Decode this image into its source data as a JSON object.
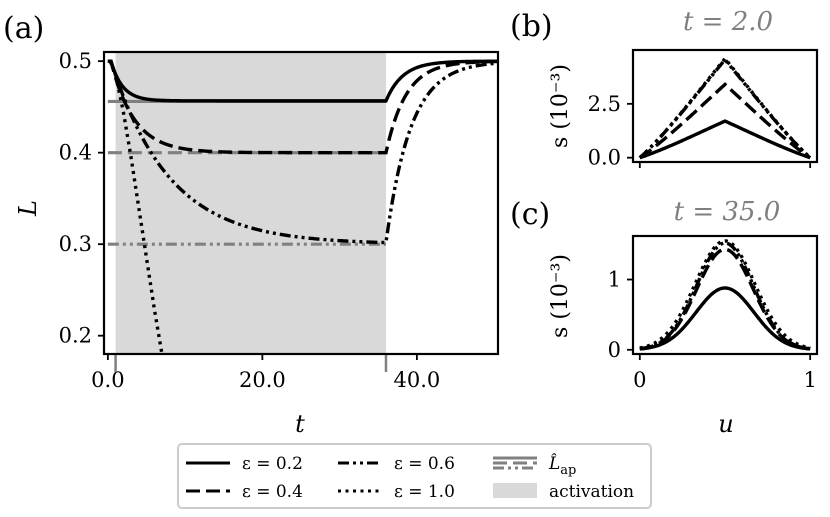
{
  "colors": {
    "curve": "#000000",
    "reference": "#808080",
    "activation": "#d9d9d9",
    "frame": "#000000",
    "title_grey": "#7f7f7f"
  },
  "chart_data": [
    {
      "panel": "(a)",
      "type": "line",
      "xlabel": "t",
      "ylabel": "L",
      "xlim": [
        -0.5,
        50.5
      ],
      "ylim": [
        0.18,
        0.51
      ],
      "x_ticks": [
        0,
        20,
        40
      ],
      "x_tick_labels": [
        "0.0",
        "20.0",
        "40.0"
      ],
      "y_ticks": [
        0.2,
        0.3,
        0.4,
        0.5
      ],
      "y_tick_labels": [
        "0.2",
        "0.3",
        "0.4",
        "0.5"
      ],
      "activation": {
        "start": 1,
        "end": 36
      },
      "series": [
        {
          "name": "ε = 0.2",
          "style": "solid",
          "L0": 0.5,
          "plateau": 0.4566,
          "tau": 1.5,
          "t_off": 36,
          "recovery_tau": 2.2,
          "final": 0.5
        },
        {
          "name": "ε = 0.4",
          "style": "dashed",
          "L0": 0.5,
          "plateau": 0.4,
          "tau": 3.0,
          "t_off": 36,
          "recovery_tau": 2.6,
          "final": 0.5
        },
        {
          "name": "ε = 0.6",
          "style": "dashdotdot",
          "L0": 0.5,
          "plateau": 0.3,
          "tau": 7.5,
          "t_off": 36,
          "recovery_tau": 3.2,
          "final": 0.5
        },
        {
          "name": "ε = 1.0",
          "style": "dotted",
          "points": [
            [
              0.3,
              0.5
            ],
            [
              1,
              0.485
            ],
            [
              2,
              0.445
            ],
            [
              3,
              0.395
            ],
            [
              4,
              0.34
            ],
            [
              5,
              0.285
            ],
            [
              6,
              0.23
            ],
            [
              7,
              0.18
            ]
          ]
        }
      ],
      "reference_lines": [
        {
          "name": "ε = 0.2",
          "style": "solid",
          "value": 0.456,
          "x_from": 0,
          "x_to": 36
        },
        {
          "name": "ε = 0.4",
          "style": "dashed",
          "value": 0.4,
          "x_from": 0,
          "x_to": 36
        },
        {
          "name": "ε = 0.6",
          "style": "dashdotdot",
          "value": 0.3,
          "x_from": 0,
          "x_to": 36
        }
      ]
    },
    {
      "panel": "(b)",
      "type": "line",
      "title": "t = 2.0",
      "xlabel": "",
      "ylabel": "s (10⁻³)",
      "xlim": [
        -0.04,
        1.04
      ],
      "ylim": [
        -0.2,
        5.0
      ],
      "y_ticks": [
        0.0,
        2.5
      ],
      "y_tick_labels": [
        "0.0",
        "2.5"
      ],
      "x_ticks": [
        0,
        1
      ],
      "x_tick_labels": [
        "",
        ""
      ],
      "series": [
        {
          "name": "ε = 0.2",
          "style": "solid",
          "shape": "triangle",
          "peak": 1.7
        },
        {
          "name": "ε = 0.4",
          "style": "dashed",
          "shape": "triangle",
          "peak": 3.4
        },
        {
          "name": "ε = 0.6",
          "style": "dashdotdot",
          "shape": "triangle",
          "peak": 4.55
        },
        {
          "name": "ε = 1.0",
          "style": "dotted",
          "shape": "triangle",
          "peak": 4.6
        }
      ]
    },
    {
      "panel": "(c)",
      "type": "line",
      "title": "t = 35.0",
      "xlabel": "u",
      "ylabel": "s (10⁻³)",
      "xlim": [
        -0.04,
        1.04
      ],
      "ylim": [
        -0.06,
        1.62
      ],
      "y_ticks": [
        0,
        1
      ],
      "y_tick_labels": [
        "0",
        "1"
      ],
      "x_ticks": [
        0,
        1
      ],
      "x_tick_labels": [
        "0",
        "1"
      ],
      "series": [
        {
          "name": "ε = 0.2",
          "style": "solid",
          "shape": "gaussian",
          "peak": 0.88,
          "width": 0.17
        },
        {
          "name": "ε = 0.4",
          "style": "dashed",
          "shape": "gaussian",
          "peak": 1.43,
          "width": 0.165
        },
        {
          "name": "ε = 0.6",
          "style": "dashdotdot",
          "shape": "gaussian",
          "peak": 1.52,
          "width": 0.165
        },
        {
          "name": "ε = 1.0",
          "style": "dotted",
          "shape": "gaussian",
          "peak": 1.55,
          "width": 0.175
        }
      ]
    }
  ],
  "legend": {
    "entries": [
      {
        "label": "ε = 0.2",
        "style": "solid"
      },
      {
        "label": "ε = 0.4",
        "style": "dashed"
      },
      {
        "label": "ε = 0.6",
        "style": "dashdotdot"
      },
      {
        "label": "ε = 1.0",
        "style": "dotted"
      },
      {
        "label": "L̂ap",
        "label_main": "L̂",
        "label_sub": "ap",
        "style": "reference"
      },
      {
        "label": "activation",
        "style": "patch"
      }
    ]
  }
}
